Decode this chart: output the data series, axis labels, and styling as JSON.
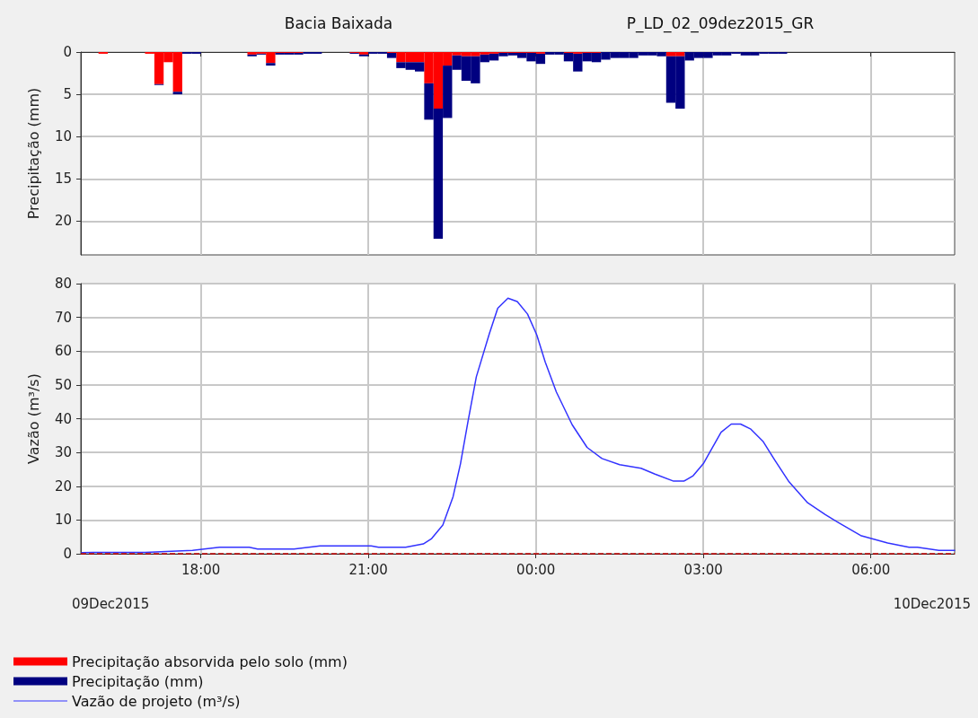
{
  "chart_data": [
    {
      "type": "bar",
      "title": "Bacia Baixada",
      "subtitle": "P_LD_02_09dez2015_GR",
      "ylabel": "Precipitação (mm)",
      "stacked": true,
      "grid": true,
      "legend": "bottom",
      "tick_labels": "y",
      "x": [
        "2015-12-09T16:15",
        "2015-12-09T17:05",
        "2015-12-09T17:15",
        "2015-12-09T17:25",
        "2015-12-09T17:35",
        "2015-12-09T17:45",
        "2015-12-09T17:55",
        "2015-12-09T18:55",
        "2015-12-09T19:05",
        "2015-12-09T19:15",
        "2015-12-09T19:25",
        "2015-12-09T19:35",
        "2015-12-09T19:45",
        "2015-12-09T19:55",
        "2015-12-09T20:05",
        "2015-12-09T20:45",
        "2015-12-09T20:55",
        "2015-12-09T21:05",
        "2015-12-09T21:15",
        "2015-12-09T21:25",
        "2015-12-09T21:35",
        "2015-12-09T21:45",
        "2015-12-09T21:55",
        "2015-12-09T22:05",
        "2015-12-09T22:15",
        "2015-12-09T22:25",
        "2015-12-09T22:35",
        "2015-12-09T22:45",
        "2015-12-09T22:55",
        "2015-12-09T23:05",
        "2015-12-09T23:15",
        "2015-12-09T23:25",
        "2015-12-09T23:35",
        "2015-12-09T23:45",
        "2015-12-09T23:55",
        "2015-12-10T00:05",
        "2015-12-10T00:15",
        "2015-12-10T00:25",
        "2015-12-10T00:35",
        "2015-12-10T00:45",
        "2015-12-10T00:55",
        "2015-12-10T01:05",
        "2015-12-10T01:15",
        "2015-12-10T01:25",
        "2015-12-10T01:35",
        "2015-12-10T01:45",
        "2015-12-10T01:55",
        "2015-12-10T02:05",
        "2015-12-10T02:15",
        "2015-12-10T02:25",
        "2015-12-10T02:35",
        "2015-12-10T02:45",
        "2015-12-10T02:55",
        "2015-12-10T03:05",
        "2015-12-10T03:15",
        "2015-12-10T03:25",
        "2015-12-10T03:35",
        "2015-12-10T03:45",
        "2015-12-10T03:55",
        "2015-12-10T04:05",
        "2015-12-10T04:15",
        "2015-12-10T04:25"
      ],
      "xlim": [
        "2015-12-09T15:51",
        "2015-12-10T07:30"
      ],
      "xticks": [
        {
          "value": "2015-12-09T18:00",
          "label": null
        },
        {
          "value": "2015-12-09T21:00",
          "label": null
        },
        {
          "value": "2015-12-10T00:00",
          "label": null
        },
        {
          "value": "2015-12-10T03:00",
          "label": null
        },
        {
          "value": "2015-12-10T06:00",
          "label": null
        }
      ],
      "ylim": [
        24,
        0
      ],
      "yticks": [
        0,
        5,
        10,
        15,
        20
      ],
      "series": [
        {
          "name": "Precipitação absorvida pelo solo (mm)",
          "color": "#ff0000",
          "values": [
            0.2,
            0.2,
            3.8,
            1.2,
            4.7,
            0,
            0,
            0.3,
            0.2,
            1.3,
            0.1,
            0.1,
            0.1,
            0,
            0,
            0.1,
            0.3,
            0,
            0,
            0.1,
            1.2,
            1.2,
            1.2,
            3.7,
            6.7,
            1.6,
            0.4,
            0.5,
            0.5,
            0.3,
            0.2,
            0.1,
            0.1,
            0.1,
            0.1,
            0.2,
            0,
            0,
            0.1,
            0.2,
            0.1,
            0.1,
            0,
            0,
            0,
            0,
            0,
            0,
            0,
            0.5,
            0.5,
            0,
            0,
            0,
            0,
            0,
            0,
            0,
            0,
            0,
            0,
            0
          ]
        },
        {
          "name": "Precipitação (mm)",
          "color": "#000080",
          "values": [
            0,
            0,
            0.1,
            0,
            0.3,
            0.2,
            0.2,
            0.2,
            0.1,
            0.3,
            0.2,
            0.2,
            0.2,
            0.2,
            0.2,
            0.1,
            0.2,
            0.2,
            0.2,
            0.6,
            0.7,
            0.9,
            1.1,
            4.3,
            15.4,
            6.2,
            1.7,
            2.9,
            3.2,
            0.9,
            0.8,
            0.4,
            0.3,
            0.6,
            1.0,
            1.2,
            0.3,
            0.3,
            1.0,
            2.1,
            1.0,
            1.1,
            0.9,
            0.7,
            0.7,
            0.7,
            0.4,
            0.4,
            0.5,
            5.5,
            6.2,
            1.0,
            0.7,
            0.7,
            0.4,
            0.4,
            0.2,
            0.4,
            0.4,
            0.2,
            0.2,
            0.2
          ]
        }
      ]
    },
    {
      "type": "line",
      "ylabel": "Vazão (m³/s)",
      "grid": true,
      "legend": "bottom",
      "marker": "none",
      "line_style": "solid",
      "xlim": [
        "2015-12-09T15:51",
        "2015-12-10T07:30"
      ],
      "xticks": [
        {
          "value": "2015-12-09T18:00",
          "label": "18:00"
        },
        {
          "value": "2015-12-09T21:00",
          "label": "21:00"
        },
        {
          "value": "2015-12-10T00:00",
          "label": "00:00"
        },
        {
          "value": "2015-12-10T03:00",
          "label": "03:00"
        },
        {
          "value": "2015-12-10T06:00",
          "label": "06:00"
        }
      ],
      "ylim": [
        0,
        80
      ],
      "yticks": [
        0,
        10,
        20,
        30,
        40,
        50,
        60,
        70,
        80
      ],
      "annotations": [
        "09Dec2015",
        "10Dec2015"
      ],
      "ref_lines": [
        {
          "axis": "y",
          "value": 0,
          "color": "#c00000",
          "line_style": "dashed"
        }
      ],
      "series": [
        {
          "name": "Vazão de projeto (m³/s)",
          "color": "#3333ff",
          "x": [
            "2015-12-09T15:52",
            "2015-12-09T16:04",
            "2015-12-09T17:00",
            "2015-12-09T17:51",
            "2015-12-09T18:20",
            "2015-12-09T18:52",
            "2015-12-09T19:01",
            "2015-12-09T19:40",
            "2015-12-09T20:08",
            "2015-12-09T21:03",
            "2015-12-09T21:11",
            "2015-12-09T21:40",
            "2015-12-09T21:59",
            "2015-12-09T22:08",
            "2015-12-09T22:20",
            "2015-12-09T22:31",
            "2015-12-09T22:39",
            "2015-12-09T22:47",
            "2015-12-09T22:56",
            "2015-12-09T23:10",
            "2015-12-09T23:19",
            "2015-12-09T23:30",
            "2015-12-09T23:40",
            "2015-12-09T23:51",
            "2015-12-10T00:01",
            "2015-12-10T00:10",
            "2015-12-10T00:22",
            "2015-12-10T00:39",
            "2015-12-10T00:55",
            "2015-12-10T01:11",
            "2015-12-10T01:30",
            "2015-12-10T01:53",
            "2015-12-10T02:08",
            "2015-12-10T02:28",
            "2015-12-10T02:39",
            "2015-12-10T02:49",
            "2015-12-10T03:00",
            "2015-12-10T03:19",
            "2015-12-10T03:30",
            "2015-12-10T03:40",
            "2015-12-10T03:51",
            "2015-12-10T04:04",
            "2015-12-10T04:17",
            "2015-12-10T04:32",
            "2015-12-10T04:52",
            "2015-12-10T05:11",
            "2015-12-10T05:24",
            "2015-12-10T05:49",
            "2015-12-10T06:18",
            "2015-12-10T06:41",
            "2015-12-10T06:50",
            "2015-12-10T07:13",
            "2015-12-10T07:30"
          ],
          "values": [
            0.3,
            0.4,
            0.4,
            1.0,
            1.9,
            1.9,
            1.4,
            1.4,
            2.3,
            2.3,
            1.9,
            1.9,
            2.9,
            4.5,
            8.5,
            16.9,
            26.7,
            39.1,
            52.4,
            65.2,
            72.7,
            75.7,
            74.7,
            71.0,
            64.8,
            56.8,
            47.9,
            38.2,
            31.5,
            28.2,
            26.4,
            25.3,
            23.6,
            21.5,
            21.5,
            23.1,
            26.7,
            36.0,
            38.4,
            38.4,
            36.9,
            33.3,
            27.6,
            21.3,
            15.1,
            11.6,
            9.4,
            5.4,
            3.2,
            1.9,
            1.9,
            1.0,
            1.0
          ]
        }
      ]
    }
  ]
}
